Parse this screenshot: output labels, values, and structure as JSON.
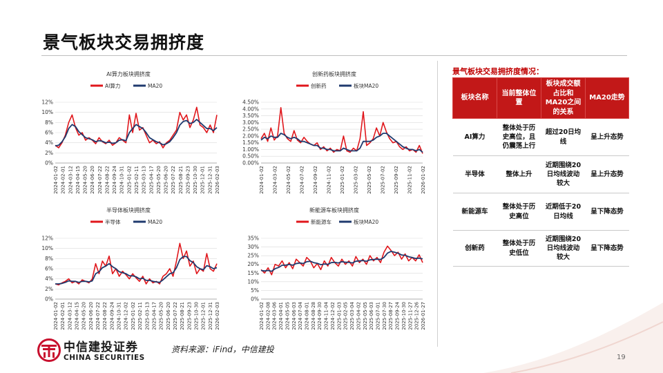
{
  "page": {
    "title": "景气板块交易拥挤度",
    "source": "资料来源：iFind，中信建投",
    "page_number": "19"
  },
  "logo": {
    "cn": "中信建投证券",
    "en": "CHINA SECURITIES",
    "icon": "china-securities-logo"
  },
  "colors": {
    "series_red": "#e0161b",
    "ma_navy": "#1f3a6e",
    "header_red": "#c21818",
    "accent_red": "#c00000"
  },
  "summary": {
    "title": "景气板块交易拥挤度情况：",
    "headers": [
      "板块名称",
      "当前整体位置",
      "板块成交额占比和MA20之间的关系",
      "MA20走势"
    ],
    "rows": [
      [
        "AI算力",
        "整体处于历史高位，且仍震荡上行",
        "超过20日均线",
        "呈上升态势"
      ],
      [
        "半导体",
        "整体上升",
        "近期围绕20日均线波动较大",
        "呈上升态势"
      ],
      [
        "新能源车",
        "整体处于历史高位",
        "近期低于20日均线",
        "呈下降态势"
      ],
      [
        "创新药",
        "整体处于历史低位",
        "近期围绕20日均线波动较大",
        "呈下降态势"
      ]
    ]
  },
  "chart_data": [
    {
      "type": "line",
      "title": "AI算力板块拥挤度",
      "legend": [
        "AI算力",
        "MA20"
      ],
      "legend_position": "top",
      "yticks": [
        "0%",
        "2%",
        "4%",
        "6%",
        "8%",
        "10%",
        "12%"
      ],
      "ylim": [
        0,
        12
      ],
      "xticks": [
        "2024-01-02",
        "2024-02-01",
        "2024-03-12",
        "2024-04-15",
        "2024-05-20",
        "2024-06-20",
        "2024-07-22",
        "2024-08-22",
        "2024-09-24",
        "2024-10-31",
        "2025-01-02",
        "2025-02-11",
        "2025-03-13",
        "2025-04-17",
        "2025-05-20",
        "2025-06-20",
        "2025-07-22",
        "2025-08-21",
        "2025-09-23",
        "2025-10-30",
        "2025-12-01",
        "2025-12-31",
        "2026-02-03"
      ],
      "series": [
        {
          "name": "AI算力",
          "values": [
            3.5,
            3.0,
            4.0,
            5.5,
            8.0,
            9.5,
            7.0,
            5.5,
            6.0,
            4.5,
            5.0,
            4.5,
            3.8,
            5.0,
            4.2,
            3.8,
            4.5,
            3.5,
            4.0,
            5.0,
            4.5,
            4.0,
            9.5,
            6.0,
            9.8,
            6.5,
            7.0,
            5.5,
            4.0,
            4.5,
            3.8,
            4.2,
            3.0,
            4.0,
            4.5,
            5.5,
            6.5,
            10.0,
            8.5,
            9.5,
            7.0,
            8.5,
            11.0,
            7.5,
            7.0,
            6.0,
            7.5,
            6.0,
            9.5
          ]
        },
        {
          "name": "MA20",
          "values": [
            3.4,
            3.5,
            4.2,
            5.2,
            6.8,
            7.6,
            7.2,
            6.2,
            5.6,
            5.0,
            4.8,
            4.6,
            4.2,
            4.4,
            4.3,
            4.0,
            4.1,
            3.9,
            4.0,
            4.5,
            4.6,
            4.4,
            6.0,
            6.8,
            7.6,
            7.2,
            6.8,
            6.0,
            5.0,
            4.6,
            4.2,
            4.0,
            3.6,
            3.8,
            4.2,
            5.0,
            6.0,
            7.5,
            8.2,
            8.4,
            7.8,
            8.0,
            8.6,
            8.0,
            7.4,
            6.8,
            6.8,
            6.4,
            7.0
          ]
        }
      ]
    },
    {
      "type": "line",
      "title": "创新药板块拥挤度",
      "legend": [
        "创新药",
        "板块MA20"
      ],
      "legend_position": "top",
      "yticks": [
        "0.00%",
        "0.50%",
        "1.00%",
        "1.50%",
        "2.00%",
        "2.50%",
        "3.00%",
        "3.50%",
        "4.00%",
        "4.50%"
      ],
      "ylim": [
        0,
        4.5
      ],
      "xticks": [
        "2024-01-02",
        "2024-03-02",
        "2024-05-02",
        "2024-07-02",
        "2024-09-02",
        "2024-11-02",
        "2025-01-02",
        "2025-03-02",
        "2025-05-02",
        "2025-07-02",
        "2025-09-02",
        "2025-11-02",
        "2026-01-02"
      ],
      "series": [
        {
          "name": "创新药",
          "values": [
            1.8,
            2.2,
            1.6,
            2.6,
            1.7,
            2.0,
            4.1,
            2.2,
            1.8,
            1.6,
            2.4,
            1.7,
            1.5,
            1.9,
            1.6,
            1.4,
            1.3,
            1.5,
            1.0,
            1.2,
            0.9,
            1.1,
            0.8,
            1.0,
            0.9,
            2.0,
            0.9,
            0.8,
            1.1,
            0.9,
            1.8,
            3.8,
            1.3,
            1.5,
            1.8,
            2.6,
            2.0,
            3.0,
            2.3,
            1.8,
            1.5,
            1.6,
            1.2,
            1.0,
            1.2,
            0.9,
            1.0,
            0.8,
            1.3,
            0.7
          ]
        },
        {
          "name": "板块MA20",
          "values": [
            1.7,
            1.9,
            1.8,
            2.0,
            1.9,
            1.9,
            2.2,
            2.1,
            1.9,
            1.8,
            1.9,
            1.8,
            1.6,
            1.6,
            1.5,
            1.4,
            1.3,
            1.3,
            1.1,
            1.1,
            1.0,
            1.0,
            0.9,
            0.9,
            0.9,
            1.1,
            1.0,
            0.9,
            0.9,
            0.9,
            1.1,
            1.6,
            1.6,
            1.6,
            1.7,
            1.9,
            2.0,
            2.2,
            2.2,
            2.0,
            1.8,
            1.6,
            1.4,
            1.2,
            1.1,
            1.0,
            1.0,
            0.9,
            1.0,
            0.8
          ]
        }
      ]
    },
    {
      "type": "line",
      "title": "半导体板块拥挤度",
      "legend": [
        "半导体",
        "MA20"
      ],
      "legend_position": "top",
      "yticks": [
        "0%",
        "2%",
        "4%",
        "6%",
        "8%",
        "10%",
        "12%"
      ],
      "ylim": [
        0,
        12
      ],
      "xticks": [
        "2024-01-02",
        "2024-02-01",
        "2024-03-12",
        "2024-04-15",
        "2024-05-20",
        "2024-06-20",
        "2024-07-22",
        "2024-08-22",
        "2024-09-24",
        "2024-10-31",
        "2024-12-02",
        "2025-01-02",
        "2025-02-11",
        "2025-03-13",
        "2025-04-17",
        "2025-05-20",
        "2025-06-20",
        "2025-07-22",
        "2025-08-21",
        "2025-09-23",
        "2025-10-30",
        "2025-12-01",
        "2025-12-31",
        "2026-02-03"
      ],
      "series": [
        {
          "name": "半导体",
          "values": [
            3.0,
            2.8,
            3.2,
            3.5,
            4.0,
            3.2,
            3.5,
            3.0,
            3.8,
            3.5,
            3.2,
            4.0,
            7.0,
            5.0,
            7.5,
            6.5,
            8.5,
            5.0,
            6.0,
            4.5,
            5.5,
            4.8,
            4.0,
            5.0,
            4.2,
            3.5,
            4.5,
            3.0,
            4.0,
            3.2,
            3.5,
            3.0,
            4.5,
            5.0,
            6.0,
            4.5,
            7.5,
            11.0,
            8.0,
            9.5,
            6.5,
            7.5,
            5.0,
            6.0,
            5.5,
            9.0,
            6.0,
            5.5,
            7.0
          ]
        },
        {
          "name": "MA20",
          "values": [
            3.0,
            3.0,
            3.1,
            3.3,
            3.6,
            3.5,
            3.5,
            3.3,
            3.5,
            3.5,
            3.4,
            3.6,
            5.0,
            5.4,
            6.2,
            6.5,
            7.0,
            6.4,
            6.0,
            5.4,
            5.2,
            5.0,
            4.6,
            4.6,
            4.4,
            4.0,
            4.1,
            3.7,
            3.7,
            3.5,
            3.4,
            3.3,
            3.8,
            4.4,
            5.0,
            5.2,
            6.2,
            7.8,
            8.4,
            8.4,
            7.6,
            7.2,
            6.4,
            6.0,
            5.8,
            6.6,
            6.4,
            6.0,
            6.2
          ]
        }
      ]
    },
    {
      "type": "line",
      "title": "新能源车板块拥挤度",
      "legend": [
        "新能源车",
        "板块MA20"
      ],
      "legend_position": "top",
      "yticks": [
        "0%",
        "5%",
        "10%",
        "15%",
        "20%",
        "25%",
        "30%",
        "35%"
      ],
      "ylim": [
        0,
        35
      ],
      "xticks": [
        "2024-01-02",
        "2024-02-08",
        "2024-03-06",
        "2024-04-01",
        "2024-05-05",
        "2024-06-03",
        "2024-07-04",
        "2024-08-01",
        "2024-08-28",
        "2024-09-30",
        "2024-11-04",
        "2024-12-02",
        "2025-01-03",
        "2025-02-05",
        "2025-03-04",
        "2025-04-02",
        "2025-05-05",
        "2025-06-03",
        "2025-07-01",
        "2025-07-30",
        "2025-08-27",
        "2025-09-24",
        "2025-10-30",
        "2025-11-27",
        "2025-12-26",
        "2026-01-27"
      ],
      "series": [
        {
          "name": "新能源车",
          "values": [
            17.0,
            15.0,
            18.0,
            14.0,
            20.0,
            19.0,
            22.0,
            18.0,
            21.0,
            17.5,
            23.0,
            21.0,
            19.0,
            24.0,
            22.0,
            18.0,
            20.5,
            17.0,
            22.0,
            19.0,
            24.0,
            21.0,
            19.0,
            23.0,
            20.0,
            22.0,
            19.0,
            24.5,
            21.0,
            23.0,
            20.0,
            25.0,
            22.0,
            24.0,
            21.0,
            27.0,
            30.5,
            28.0,
            25.0,
            27.0,
            23.0,
            26.0,
            22.0,
            24.0,
            22.0,
            25.5,
            21.0
          ]
        },
        {
          "name": "板块MA20",
          "values": [
            16.5,
            16.2,
            16.5,
            16.0,
            17.5,
            18.2,
            19.5,
            19.5,
            20.0,
            19.5,
            20.5,
            20.8,
            20.5,
            21.5,
            21.8,
            21.0,
            20.6,
            19.8,
            20.2,
            20.0,
            21.0,
            21.2,
            20.8,
            21.5,
            21.2,
            21.2,
            20.8,
            21.8,
            22.0,
            22.2,
            21.8,
            22.6,
            22.8,
            23.0,
            22.8,
            24.0,
            26.5,
            27.5,
            27.0,
            26.4,
            25.4,
            25.2,
            24.4,
            24.0,
            23.4,
            23.6,
            23.2
          ]
        }
      ]
    }
  ]
}
